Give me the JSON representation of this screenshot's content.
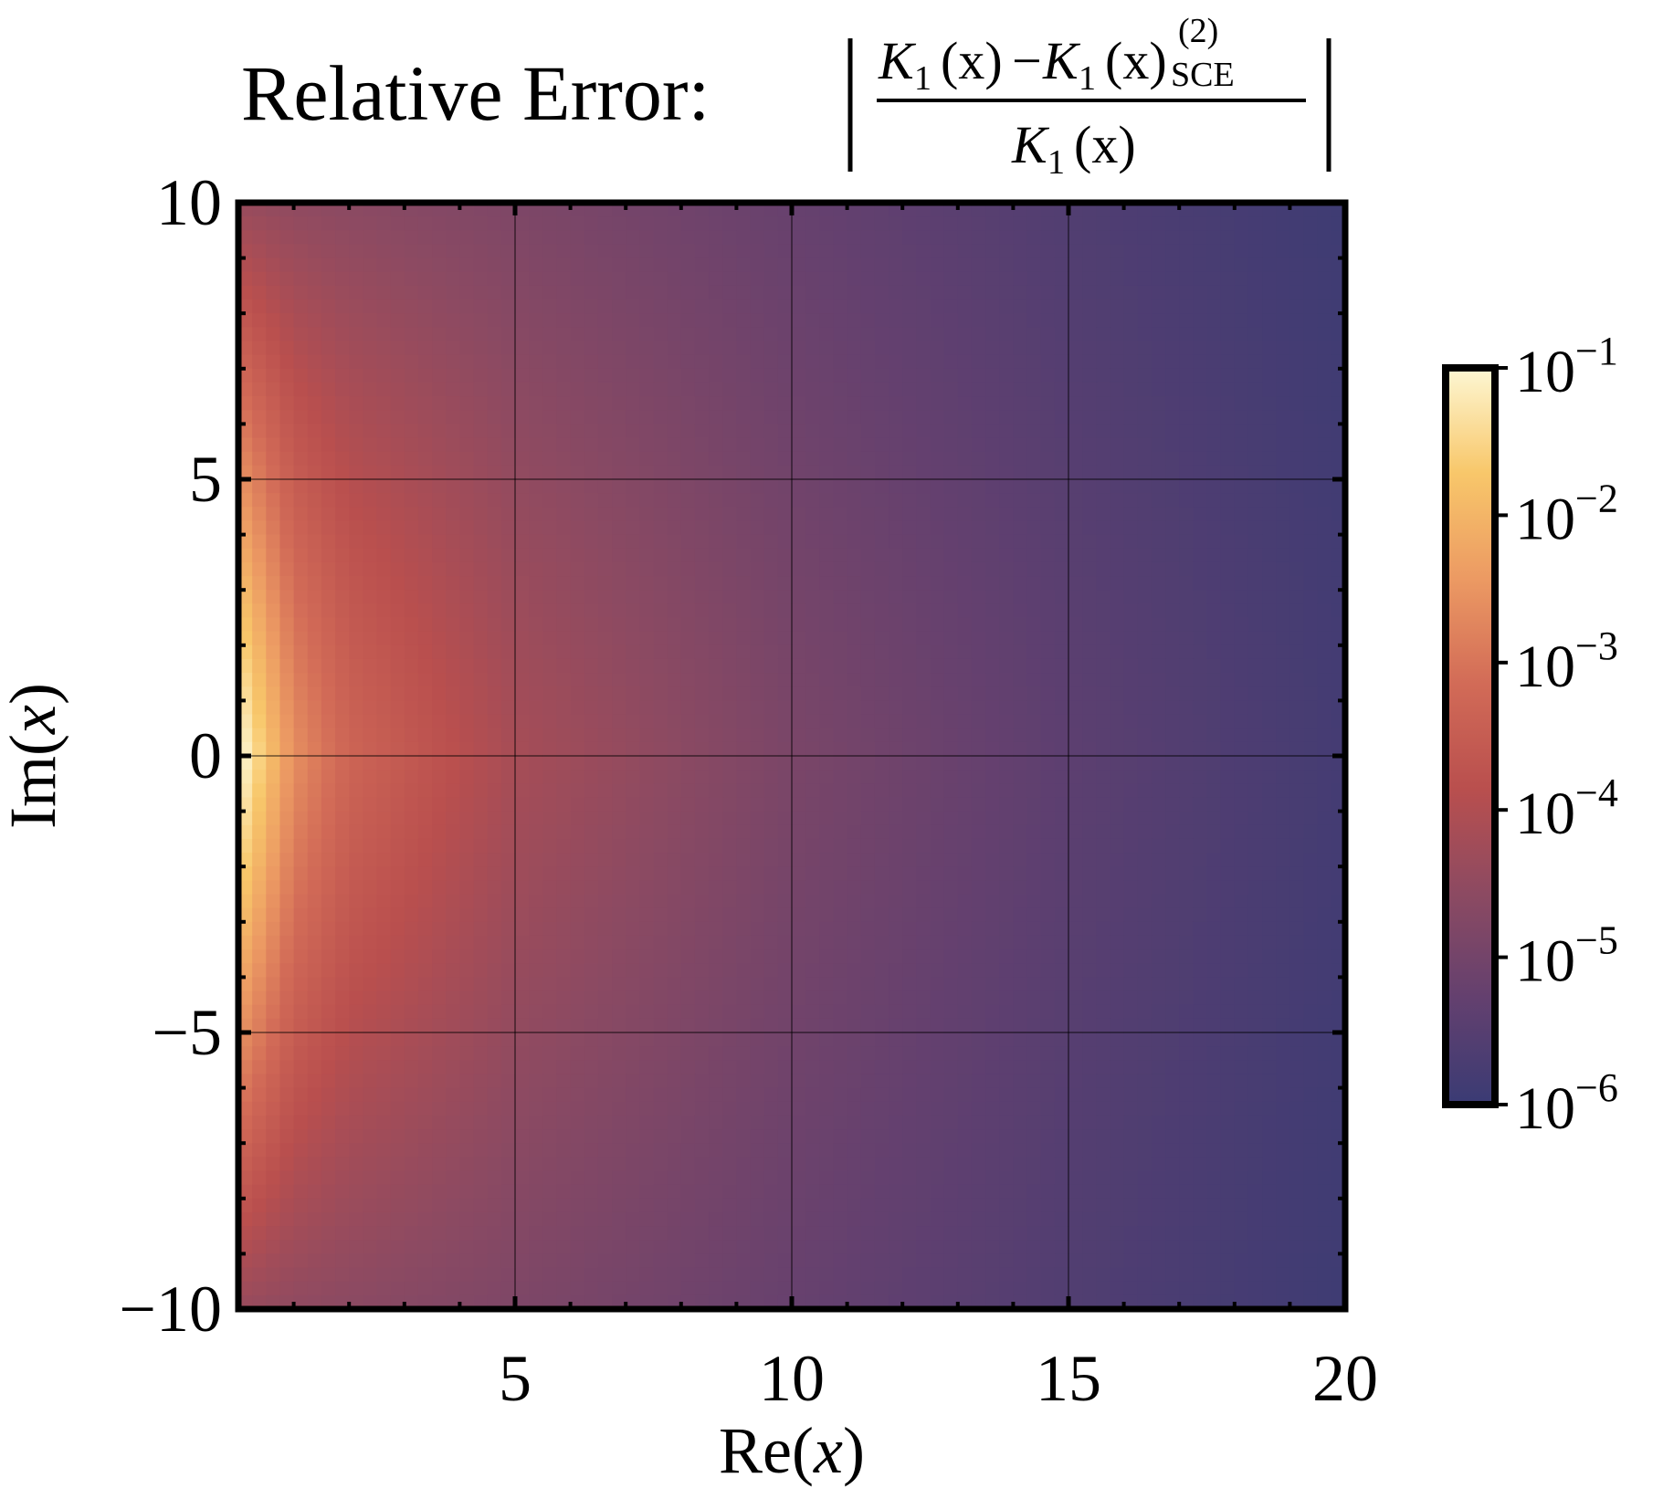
{
  "chart_data": {
    "type": "heatmap",
    "title": {
      "prefix": "Relative Error:",
      "numerator_lhs": "K",
      "numerator_lhs_sub": "1",
      "numerator_lhs_arg": "(x)",
      "minus": "−",
      "numerator_rhs": "K",
      "numerator_rhs_sub": "1",
      "numerator_rhs_arg": "(x)",
      "numerator_rhs_sup": "(2)",
      "numerator_rhs_subscript": "SCE",
      "denominator": "K",
      "denominator_sub": "1",
      "denominator_arg": "(x)"
    },
    "xlabel": {
      "pre": "Re(",
      "var": "x",
      "post": ")"
    },
    "ylabel": {
      "pre": "Im(",
      "var": "x",
      "post": ")"
    },
    "xlim": [
      0,
      20
    ],
    "ylim": [
      -10,
      10
    ],
    "x_ticks": [
      5,
      10,
      15,
      20
    ],
    "x_tick_labels": [
      "5",
      "10",
      "15",
      "20"
    ],
    "y_ticks": [
      -10,
      -5,
      0,
      5,
      10
    ],
    "y_tick_labels": [
      "−10",
      "−5",
      "0",
      "5",
      "10"
    ],
    "grid": true,
    "colorbar": {
      "scale": "log",
      "range": [
        1e-06,
        0.1
      ],
      "ticks": [
        0.1,
        0.01,
        0.001,
        0.0001,
        1e-05,
        1e-06
      ],
      "tick_base": "10",
      "tick_exponents": [
        "−1",
        "−2",
        "−3",
        "−4",
        "−5",
        "−6"
      ],
      "colors": [
        "#fdf7d3",
        "#f8c76a",
        "#ec9a63",
        "#d26b57",
        "#b94f4e",
        "#8c4a62",
        "#63406f",
        "#3a3b74"
      ],
      "position": "right"
    },
    "field_samples": {
      "re_x": [
        0.05,
        1,
        2,
        5,
        10,
        15,
        20
      ],
      "im_x_at_zero": [
        0.1,
        0.0025,
        0.0005,
        7e-05,
        1.3e-05,
        4e-06,
        1.5e-06
      ],
      "im_x_at_pm10": [
        4e-05,
        3e-05,
        2.5e-05,
        1.5e-05,
        6e-06,
        2.5e-06,
        1.2e-06
      ]
    }
  }
}
